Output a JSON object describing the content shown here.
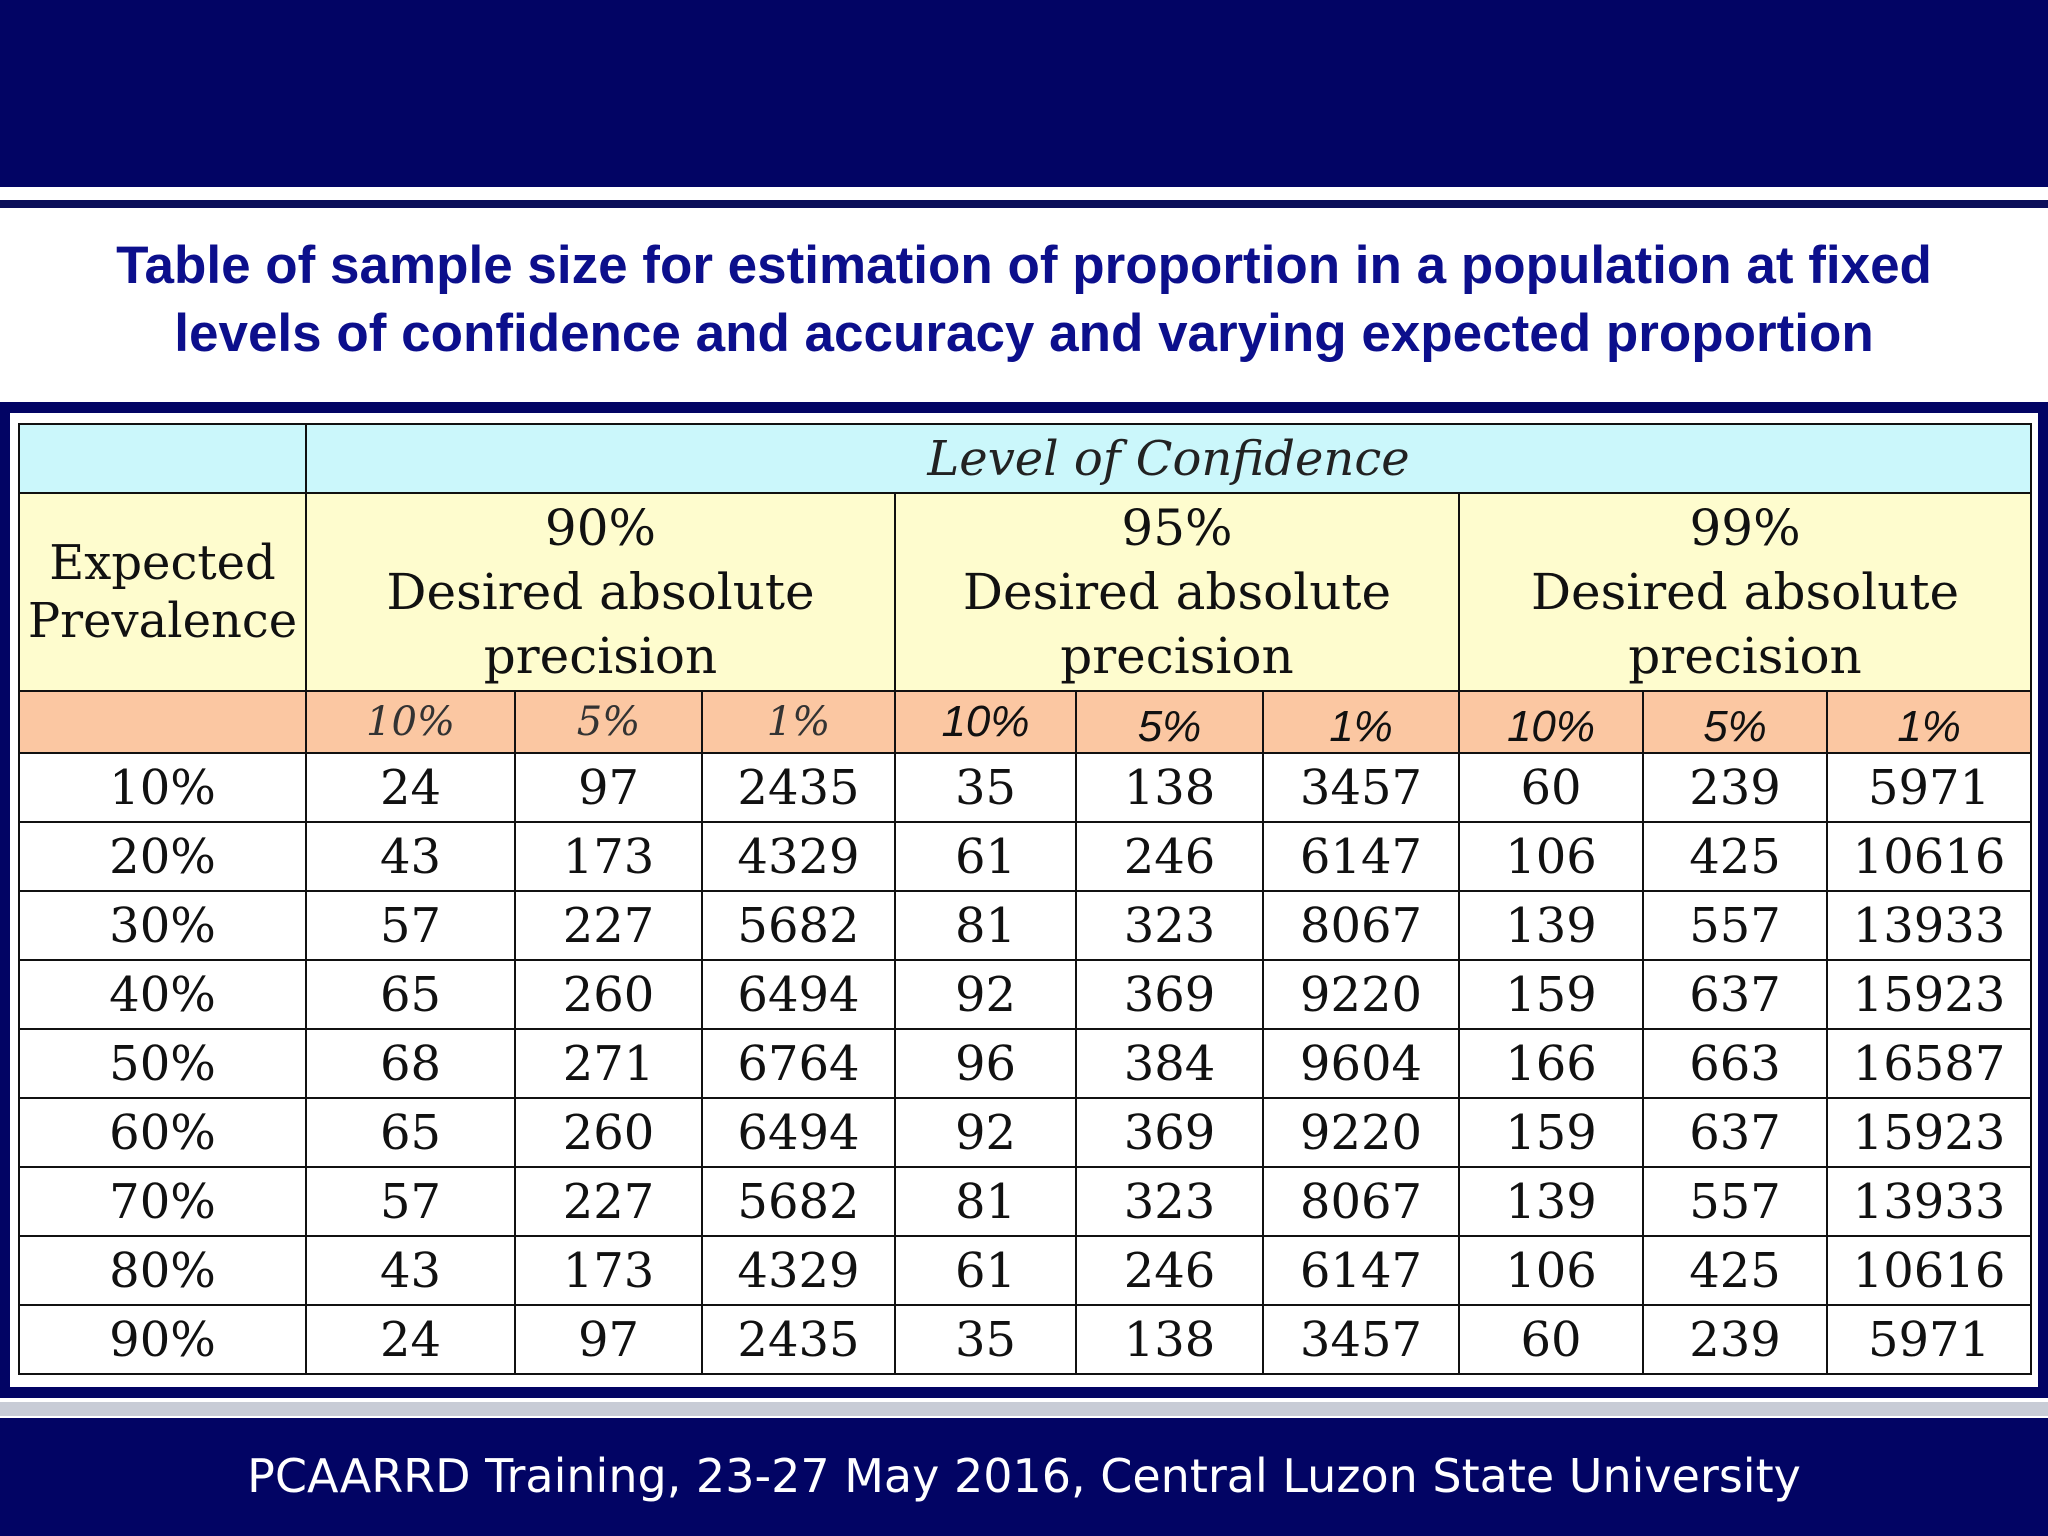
{
  "slide": {
    "title_line1": "Table of sample size for estimation of proportion in a population at fixed",
    "title_line2": "levels of confidence and accuracy and varying expected proportion",
    "footer": "PCAARRD Training, 23-27 May 2016, Central Luzon State University"
  },
  "table": {
    "level_header": "Level of Confidence",
    "prevalence_header": [
      "Expected",
      "Prevalence"
    ],
    "confidence_groups": [
      {
        "level": "90%",
        "line2": "Desired absolute",
        "line3": "precision"
      },
      {
        "level": "95%",
        "line2": "Desired absolute",
        "line3": "precision"
      },
      {
        "level": "99%",
        "line2": "Desired absolute",
        "line3": "precision"
      }
    ],
    "precision_labels": [
      "10%",
      "5%",
      "1%",
      "10%",
      "5%",
      "1%",
      "10%",
      "5%",
      "1%"
    ],
    "rows": [
      {
        "prevalence": "10%",
        "values": [
          "24",
          "97",
          "2435",
          "35",
          "138",
          "3457",
          "60",
          "239",
          "5971"
        ]
      },
      {
        "prevalence": "20%",
        "values": [
          "43",
          "173",
          "4329",
          "61",
          "246",
          "6147",
          "106",
          "425",
          "10616"
        ]
      },
      {
        "prevalence": "30%",
        "values": [
          "57",
          "227",
          "5682",
          "81",
          "323",
          "8067",
          "139",
          "557",
          "13933"
        ]
      },
      {
        "prevalence": "40%",
        "values": [
          "65",
          "260",
          "6494",
          "92",
          "369",
          "9220",
          "159",
          "637",
          "15923"
        ]
      },
      {
        "prevalence": "50%",
        "values": [
          "68",
          "271",
          "6764",
          "96",
          "384",
          "9604",
          "166",
          "663",
          "16587"
        ]
      },
      {
        "prevalence": "60%",
        "values": [
          "65",
          "260",
          "6494",
          "92",
          "369",
          "9220",
          "159",
          "637",
          "15923"
        ]
      },
      {
        "prevalence": "70%",
        "values": [
          "57",
          "227",
          "5682",
          "81",
          "323",
          "8067",
          "139",
          "557",
          "13933"
        ]
      },
      {
        "prevalence": "80%",
        "values": [
          "43",
          "173",
          "4329",
          "61",
          "246",
          "6147",
          "106",
          "425",
          "10616"
        ]
      },
      {
        "prevalence": "90%",
        "values": [
          "24",
          "97",
          "2435",
          "35",
          "138",
          "3457",
          "60",
          "239",
          "5971"
        ]
      }
    ]
  },
  "colors": {
    "banner": "#020464",
    "title_text": "#0c0f8c",
    "header_cyan": "#cbf7fb",
    "header_cream": "#fefcce",
    "header_peach": "#fbc7a2"
  }
}
